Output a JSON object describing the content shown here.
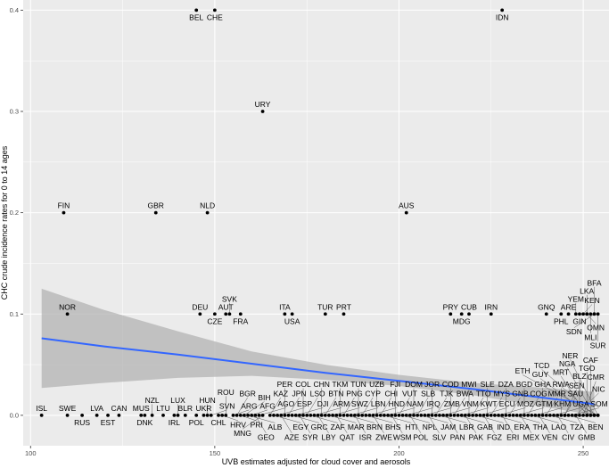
{
  "chart_data": {
    "type": "scatter",
    "xlabel": "UVB estimates adjusted for cloud cover and aerosols",
    "ylabel": "CHC crude incidence rates for 0 to 14 ages",
    "xlim": [
      98,
      257
    ],
    "ylim": [
      -0.03,
      0.41
    ],
    "x_ticks": [
      100,
      150,
      200,
      250
    ],
    "y_ticks": [
      0.0,
      0.1,
      0.2,
      0.3,
      0.4
    ],
    "x_tick_labels": [
      "100",
      "150",
      "200",
      "250"
    ],
    "y_tick_labels": [
      "0.0",
      "0.1",
      "0.2",
      "0.3",
      "0.4"
    ],
    "grid": true,
    "background": "#ebebeb",
    "colors": {
      "points": "#000000",
      "trend": "#3366ff",
      "ribbon": "#b3b3b3",
      "grid": "#ffffff"
    },
    "trend": {
      "type": "linear fit with confidence band",
      "x": [
        103,
        120,
        140,
        160,
        180,
        200,
        220,
        240,
        253
      ],
      "y": [
        0.076,
        0.068,
        0.06,
        0.051,
        0.042,
        0.034,
        0.026,
        0.017,
        0.011
      ],
      "lower": [
        0.027,
        0.032,
        0.037,
        0.039,
        0.035,
        0.029,
        0.02,
        0.008,
        0.0
      ],
      "upper": [
        0.125,
        0.104,
        0.083,
        0.063,
        0.05,
        0.04,
        0.032,
        0.027,
        0.023
      ]
    },
    "points": [
      {
        "label": "BEL",
        "x": 145,
        "y": 0.4
      },
      {
        "label": "CHE",
        "x": 150,
        "y": 0.4
      },
      {
        "label": "IDN",
        "x": 228,
        "y": 0.4
      },
      {
        "label": "URY",
        "x": 163,
        "y": 0.3
      },
      {
        "label": "FIN",
        "x": 109,
        "y": 0.2
      },
      {
        "label": "GBR",
        "x": 134,
        "y": 0.2
      },
      {
        "label": "NLD",
        "x": 148,
        "y": 0.2
      },
      {
        "label": "AUS",
        "x": 202,
        "y": 0.2
      },
      {
        "label": "NOR",
        "x": 110,
        "y": 0.1
      },
      {
        "label": "DEU",
        "x": 146,
        "y": 0.1
      },
      {
        "label": "CZE",
        "x": 150,
        "y": 0.1
      },
      {
        "label": "AUT",
        "x": 153,
        "y": 0.1
      },
      {
        "label": "SVK",
        "x": 154,
        "y": 0.1
      },
      {
        "label": "FRA",
        "x": 157,
        "y": 0.1
      },
      {
        "label": "ITA",
        "x": 169,
        "y": 0.1
      },
      {
        "label": "USA",
        "x": 171,
        "y": 0.1
      },
      {
        "label": "TUR",
        "x": 180,
        "y": 0.1
      },
      {
        "label": "PRT",
        "x": 185,
        "y": 0.1
      },
      {
        "label": "PRY",
        "x": 214,
        "y": 0.1
      },
      {
        "label": "MDG",
        "x": 217,
        "y": 0.1
      },
      {
        "label": "CUB",
        "x": 219,
        "y": 0.1
      },
      {
        "label": "IRN",
        "x": 225,
        "y": 0.1
      },
      {
        "label": "GNQ",
        "x": 240,
        "y": 0.1
      },
      {
        "label": "PHL",
        "x": 244,
        "y": 0.1
      },
      {
        "label": "ARE",
        "x": 246,
        "y": 0.1
      },
      {
        "label": "YEM",
        "x": 248,
        "y": 0.1
      },
      {
        "label": "GIN",
        "x": 249,
        "y": 0.1
      },
      {
        "label": "KEN",
        "x": 250,
        "y": 0.1
      },
      {
        "label": "OMN",
        "x": 251,
        "y": 0.1
      },
      {
        "label": "LKA",
        "x": 251,
        "y": 0.1
      },
      {
        "label": "MLI",
        "x": 252,
        "y": 0.1
      },
      {
        "label": "SDN",
        "x": 253,
        "y": 0.1
      },
      {
        "label": "BFA",
        "x": 253,
        "y": 0.1
      },
      {
        "label": "SUR",
        "x": 254,
        "y": 0.1
      },
      {
        "label": "ISL",
        "x": 103,
        "y": 0.0
      },
      {
        "label": "SWE",
        "x": 110,
        "y": 0.0
      },
      {
        "label": "RUS",
        "x": 114,
        "y": 0.0
      },
      {
        "label": "LVA",
        "x": 118,
        "y": 0.0
      },
      {
        "label": "EST",
        "x": 121,
        "y": 0.0
      },
      {
        "label": "CAN",
        "x": 124,
        "y": 0.0
      },
      {
        "label": "MUS",
        "x": 130,
        "y": 0.0
      },
      {
        "label": "DNK",
        "x": 131,
        "y": 0.0
      },
      {
        "label": "NZL",
        "x": 133,
        "y": 0.0
      },
      {
        "label": "LTU",
        "x": 136,
        "y": 0.0
      },
      {
        "label": "IRL",
        "x": 139,
        "y": 0.0
      },
      {
        "label": "LUX",
        "x": 140,
        "y": 0.0
      },
      {
        "label": "BLR",
        "x": 142,
        "y": 0.0
      },
      {
        "label": "POL",
        "x": 145,
        "y": 0.0
      },
      {
        "label": "UKR",
        "x": 147,
        "y": 0.0
      },
      {
        "label": "HUN",
        "x": 148,
        "y": 0.0
      },
      {
        "label": "SVN",
        "x": 149,
        "y": 0.0
      },
      {
        "label": "CHL",
        "x": 151,
        "y": 0.0
      },
      {
        "label": "HRV",
        "x": 152,
        "y": 0.0
      },
      {
        "label": "ROU",
        "x": 153,
        "y": 0.0
      },
      {
        "label": "ARG",
        "x": 155,
        "y": 0.0
      },
      {
        "label": "BGR",
        "x": 156,
        "y": 0.0
      },
      {
        "label": "PRI",
        "x": 157,
        "y": 0.0
      },
      {
        "label": "BIH",
        "x": 158,
        "y": 0.0
      },
      {
        "label": "ALB",
        "x": 159,
        "y": 0.0
      },
      {
        "label": "AFG",
        "x": 160,
        "y": 0.0
      },
      {
        "label": "GEO",
        "x": 161,
        "y": 0.0
      },
      {
        "label": "AGO",
        "x": 162,
        "y": 0.0
      },
      {
        "label": "MNG",
        "x": 163,
        "y": 0.0
      },
      {
        "label": "KAZ",
        "x": 165,
        "y": 0.0
      },
      {
        "label": "EGY",
        "x": 166,
        "y": 0.0
      },
      {
        "label": "ESP",
        "x": 167,
        "y": 0.0
      },
      {
        "label": "AZE",
        "x": 168,
        "y": 0.0
      },
      {
        "label": "PER",
        "x": 169,
        "y": 0.0
      },
      {
        "label": "JPN",
        "x": 170,
        "y": 0.0
      },
      {
        "label": "GRC",
        "x": 171,
        "y": 0.0
      },
      {
        "label": "DJI",
        "x": 172,
        "y": 0.0
      },
      {
        "label": "SYR",
        "x": 173,
        "y": 0.0
      },
      {
        "label": "COL",
        "x": 174,
        "y": 0.0
      },
      {
        "label": "LSO",
        "x": 175,
        "y": 0.0
      },
      {
        "label": "ZAF",
        "x": 176,
        "y": 0.0
      },
      {
        "label": "ARM",
        "x": 177,
        "y": 0.0
      },
      {
        "label": "LBY",
        "x": 178,
        "y": 0.0
      },
      {
        "label": "CHN",
        "x": 179,
        "y": 0.0
      },
      {
        "label": "BTN",
        "x": 180,
        "y": 0.0
      },
      {
        "label": "MAR",
        "x": 181,
        "y": 0.0
      },
      {
        "label": "SWZ",
        "x": 182,
        "y": 0.0
      },
      {
        "label": "QAT",
        "x": 183,
        "y": 0.0
      },
      {
        "label": "TKM",
        "x": 184,
        "y": 0.0
      },
      {
        "label": "PNG",
        "x": 185,
        "y": 0.0
      },
      {
        "label": "BRN",
        "x": 186,
        "y": 0.0
      },
      {
        "label": "LBN",
        "x": 187,
        "y": 0.0
      },
      {
        "label": "ISR",
        "x": 188,
        "y": 0.0
      },
      {
        "label": "TUN",
        "x": 189,
        "y": 0.0
      },
      {
        "label": "CYP",
        "x": 190,
        "y": 0.0
      },
      {
        "label": "BHS",
        "x": 191,
        "y": 0.0
      },
      {
        "label": "HND",
        "x": 192,
        "y": 0.0
      },
      {
        "label": "ZWE",
        "x": 193,
        "y": 0.0
      },
      {
        "label": "UZB",
        "x": 194,
        "y": 0.0
      },
      {
        "label": "CHI",
        "x": 195,
        "y": 0.0
      },
      {
        "label": "HTI",
        "x": 196,
        "y": 0.0
      },
      {
        "label": "NAM",
        "x": 197,
        "y": 0.0
      },
      {
        "label": "WSM",
        "x": 198,
        "y": 0.0
      },
      {
        "label": "FJI",
        "x": 199,
        "y": 0.0
      },
      {
        "label": "VUT",
        "x": 200,
        "y": 0.0
      },
      {
        "label": "NPL",
        "x": 201,
        "y": 0.0
      },
      {
        "label": "IRQ",
        "x": 202,
        "y": 0.0
      },
      {
        "label": "POL",
        "x": 203,
        "y": 0.0
      },
      {
        "label": "DOM",
        "x": 204,
        "y": 0.0
      },
      {
        "label": "SLB",
        "x": 205,
        "y": 0.0
      },
      {
        "label": "JAM",
        "x": 206,
        "y": 0.0
      },
      {
        "label": "ZMB",
        "x": 207,
        "y": 0.0
      },
      {
        "label": "SLV",
        "x": 208,
        "y": 0.0
      },
      {
        "label": "JOR",
        "x": 209,
        "y": 0.0
      },
      {
        "label": "TJK",
        "x": 210,
        "y": 0.0
      },
      {
        "label": "LBR",
        "x": 211,
        "y": 0.0
      },
      {
        "label": "VNM",
        "x": 212,
        "y": 0.0
      },
      {
        "label": "PAN",
        "x": 213,
        "y": 0.0
      },
      {
        "label": "COD",
        "x": 214,
        "y": 0.0
      },
      {
        "label": "BWA",
        "x": 215,
        "y": 0.0
      },
      {
        "label": "GAB",
        "x": 216,
        "y": 0.0
      },
      {
        "label": "KWT",
        "x": 217,
        "y": 0.0
      },
      {
        "label": "PAK",
        "x": 218,
        "y": 0.0
      },
      {
        "label": "MWI",
        "x": 219,
        "y": 0.0
      },
      {
        "label": "TTO",
        "x": 220,
        "y": 0.0
      },
      {
        "label": "IND",
        "x": 221,
        "y": 0.0
      },
      {
        "label": "ECU",
        "x": 222,
        "y": 0.0
      },
      {
        "label": "FGZ",
        "x": 223,
        "y": 0.0
      },
      {
        "label": "SLE",
        "x": 224,
        "y": 0.0
      },
      {
        "label": "MYS",
        "x": 225,
        "y": 0.0
      },
      {
        "label": "ERA",
        "x": 226,
        "y": 0.0
      },
      {
        "label": "MOZ",
        "x": 227,
        "y": 0.0
      },
      {
        "label": "ERI",
        "x": 228,
        "y": 0.0
      },
      {
        "label": "DZA",
        "x": 229,
        "y": 0.0
      },
      {
        "label": "GNB",
        "x": 230,
        "y": 0.0
      },
      {
        "label": "THA",
        "x": 231,
        "y": 0.0
      },
      {
        "label": "GTM",
        "x": 232,
        "y": 0.0
      },
      {
        "label": "MEX",
        "x": 233,
        "y": 0.0
      },
      {
        "label": "BGD",
        "x": 234,
        "y": 0.0
      },
      {
        "label": "COG",
        "x": 235,
        "y": 0.0
      },
      {
        "label": "LAO",
        "x": 236,
        "y": 0.0
      },
      {
        "label": "KHM",
        "x": 237,
        "y": 0.0
      },
      {
        "label": "VEN",
        "x": 238,
        "y": 0.0
      },
      {
        "label": "GHA",
        "x": 239,
        "y": 0.0
      },
      {
        "label": "MMR",
        "x": 240,
        "y": 0.0
      },
      {
        "label": "TZA",
        "x": 241,
        "y": 0.0
      },
      {
        "label": "UGA",
        "x": 242,
        "y": 0.0
      },
      {
        "label": "CIV",
        "x": 243,
        "y": 0.0
      },
      {
        "label": "RWA",
        "x": 244,
        "y": 0.0
      },
      {
        "label": "SAU",
        "x": 245,
        "y": 0.0
      },
      {
        "label": "SEN",
        "x": 245,
        "y": 0.0
      },
      {
        "label": "BEN",
        "x": 246,
        "y": 0.0
      },
      {
        "label": "SOM",
        "x": 247,
        "y": 0.0
      },
      {
        "label": "GMB",
        "x": 248,
        "y": 0.0
      },
      {
        "label": "NIC",
        "x": 248,
        "y": 0.0
      },
      {
        "label": "BLZ",
        "x": 249,
        "y": 0.0
      },
      {
        "label": "CMR",
        "x": 250,
        "y": 0.0
      },
      {
        "label": "TGO",
        "x": 251,
        "y": 0.0
      },
      {
        "label": "MRT",
        "x": 251,
        "y": 0.0
      },
      {
        "label": "CAF",
        "x": 252,
        "y": 0.0
      },
      {
        "label": "GUY",
        "x": 252,
        "y": 0.0
      },
      {
        "label": "NGA",
        "x": 253,
        "y": 0.0
      },
      {
        "label": "TCD",
        "x": 253,
        "y": 0.0
      },
      {
        "label": "NER",
        "x": 254,
        "y": 0.0
      },
      {
        "label": "ETH",
        "x": 254,
        "y": 0.0
      }
    ]
  }
}
